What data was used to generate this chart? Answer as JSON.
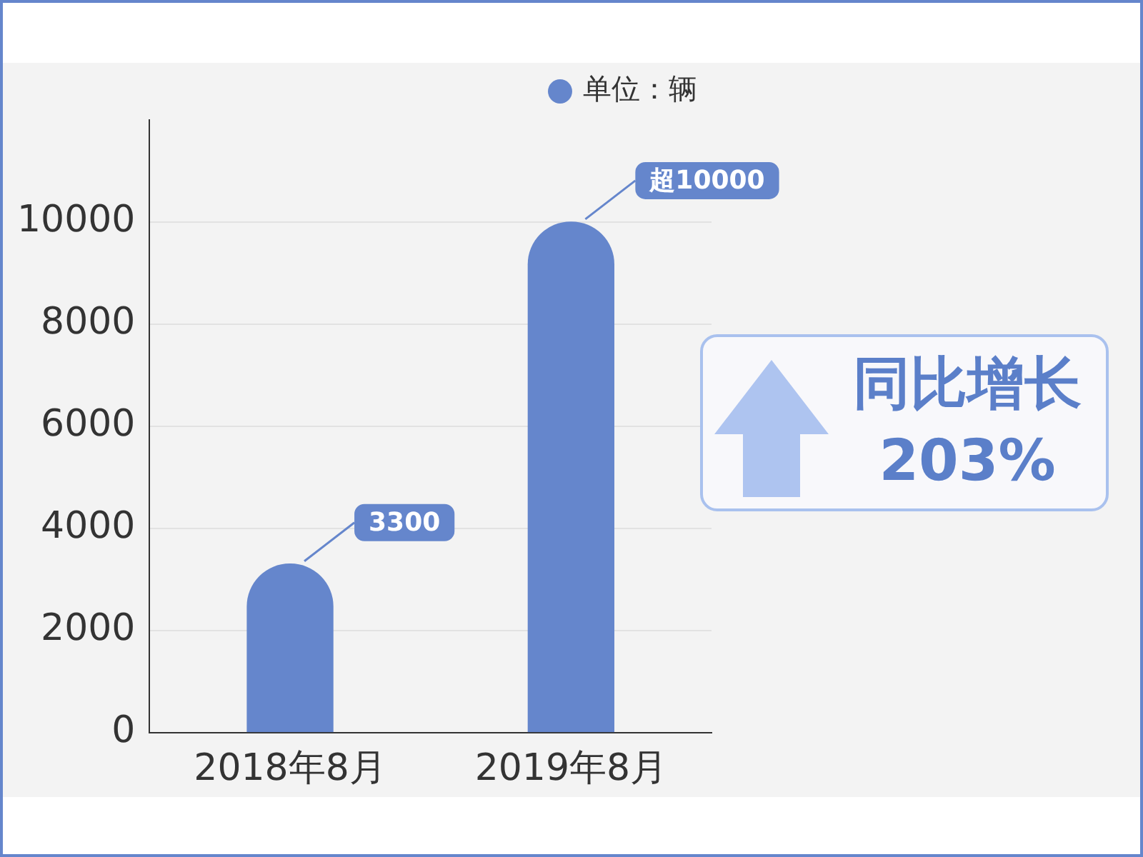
{
  "chart_data": {
    "type": "bar",
    "categories": [
      "2018年8月",
      "2019年8月"
    ],
    "series": [
      {
        "name": "单位：辆",
        "color": "#6586cc",
        "values": [
          3300,
          10000
        ],
        "value_labels": [
          "3300",
          "超10000"
        ]
      }
    ],
    "ylim": [
      0,
      12000
    ],
    "yticks": [
      0,
      2000,
      4000,
      6000,
      8000,
      10000
    ],
    "grid": "y",
    "legend": "top right",
    "annotations": [
      "同比增长\n203%"
    ]
  }
}
